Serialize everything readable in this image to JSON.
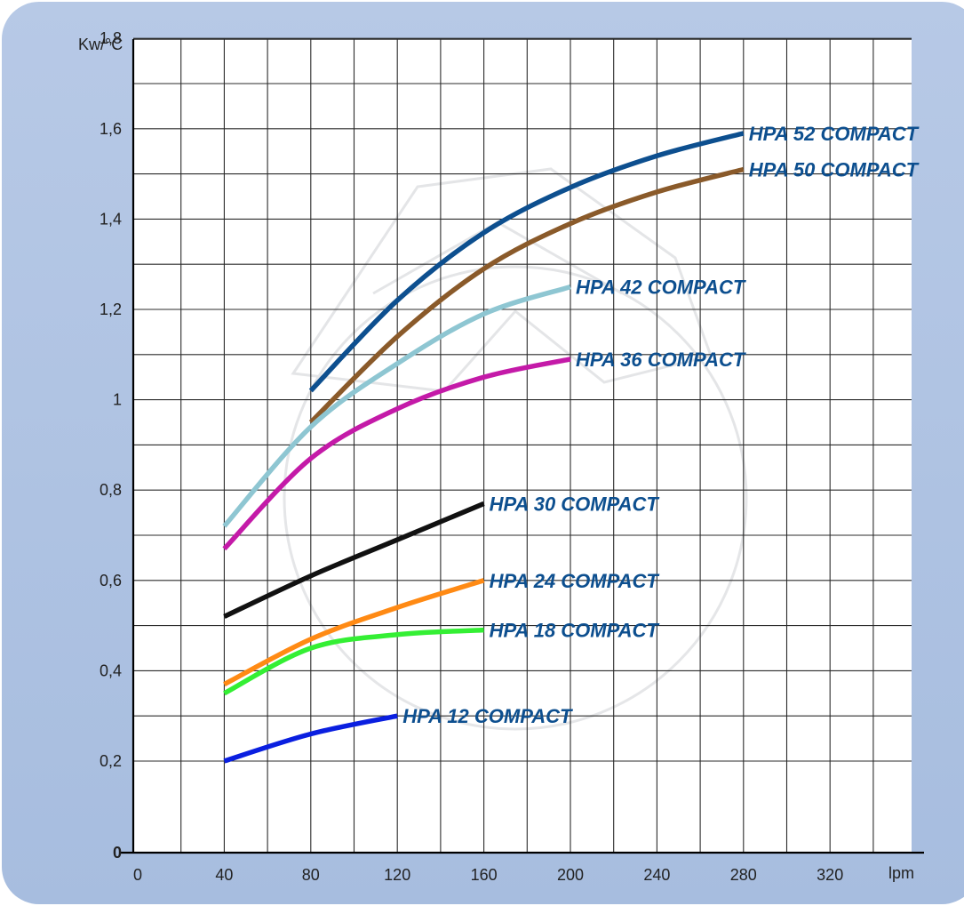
{
  "chart_data": {
    "type": "line",
    "title": "",
    "ylabel": "Kw/°C",
    "xlabel": "lpm",
    "xlim": [
      0,
      360
    ],
    "ylim": [
      0,
      2.0
    ],
    "grid": true,
    "x_ticks": [
      0,
      40,
      80,
      120,
      160,
      200,
      240,
      280,
      320
    ],
    "x_tick_labels": [
      "0",
      "40",
      "80",
      "120",
      "160",
      "200",
      "240",
      "280",
      "320"
    ],
    "y_ticks": [
      0,
      0.2,
      0.4,
      0.6,
      0.8,
      1.0,
      1.2,
      1.4,
      1.6,
      1.8
    ],
    "y_tick_labels": [
      "0",
      "0,2",
      "0,4",
      "0,6",
      "0,8",
      "1",
      "1,2",
      "1,4",
      "1,6",
      "1,8"
    ],
    "series": [
      {
        "name": "HPA 52 COMPACT",
        "color": "#0d4f8f",
        "x": [
          80,
          120,
          160,
          200,
          240,
          280
        ],
        "y": [
          1.02,
          1.22,
          1.37,
          1.47,
          1.54,
          1.59
        ]
      },
      {
        "name": "HPA 50 COMPACT",
        "color": "#8a5a2a",
        "x": [
          80,
          120,
          160,
          200,
          240,
          280
        ],
        "y": [
          0.95,
          1.14,
          1.29,
          1.39,
          1.46,
          1.51
        ]
      },
      {
        "name": "HPA 42 COMPACT",
        "color": "#8ec6d2",
        "x": [
          40,
          80,
          120,
          160,
          200
        ],
        "y": [
          0.72,
          0.94,
          1.08,
          1.19,
          1.25
        ]
      },
      {
        "name": "HPA 36 COMPACT",
        "color": "#c41aa8",
        "x": [
          40,
          80,
          120,
          160,
          200
        ],
        "y": [
          0.67,
          0.87,
          0.98,
          1.05,
          1.09
        ]
      },
      {
        "name": "HPA 30 COMPACT",
        "color": "#111111",
        "x": [
          40,
          80,
          120,
          160
        ],
        "y": [
          0.52,
          0.61,
          0.69,
          0.77
        ]
      },
      {
        "name": "HPA 24 COMPACT",
        "color": "#ff8a14",
        "x": [
          40,
          80,
          120,
          160
        ],
        "y": [
          0.37,
          0.47,
          0.54,
          0.6
        ]
      },
      {
        "name": "HPA 18 COMPACT",
        "color": "#34ef34",
        "x": [
          40,
          80,
          120,
          160
        ],
        "y": [
          0.35,
          0.45,
          0.48,
          0.49
        ]
      },
      {
        "name": "HPA 12 COMPACT",
        "color": "#0a1fe0",
        "x": [
          40,
          80,
          120
        ],
        "y": [
          0.2,
          0.26,
          0.3
        ]
      }
    ]
  }
}
